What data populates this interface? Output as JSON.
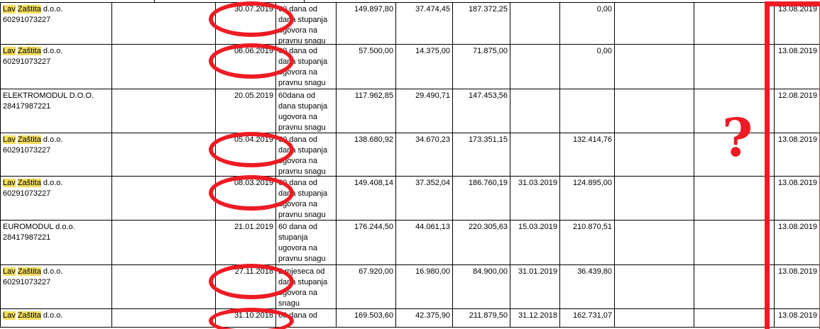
{
  "colors": {
    "annotation_red": "#ed1c24",
    "search_highlight_yellow": "#f2dc5c"
  },
  "annotations": {
    "question_mark": "?",
    "red_box_column": "report_date",
    "circled_field": "contract_date"
  },
  "table": {
    "rows": [
      {
        "company_marked": "Lav Zaštita",
        "company_rest": "d.o.o.",
        "company_id": "60291073227",
        "contract_date": "30.07.2019",
        "circled": true,
        "terms": "60 dana od dana stupanja ugovora na pravnu snagu",
        "amount_net": "149.897,80",
        "amount_vat": "37.474,45",
        "amount_total": "187.372,25",
        "due_date": "",
        "amount_paid": "0,00",
        "report_date": "13.08.2019"
      },
      {
        "company_marked": "Lav Zaštita",
        "company_rest": "d.o.o.",
        "company_id": "60291073227",
        "contract_date": "06.06.2019",
        "circled": true,
        "terms": "60 dana od dana stupanja ugovora na pravnu snagu",
        "amount_net": "57.500,00",
        "amount_vat": "14.375,00",
        "amount_total": "71.875,00",
        "due_date": "",
        "amount_paid": "0,00",
        "report_date": "13.08.2019"
      },
      {
        "company_marked": "",
        "company_rest": "ELEKTROMODUL D.O.O.",
        "company_id": "28417987221",
        "contract_date": "20.05.2019",
        "circled": false,
        "terms": "60dana od dana stupanja ugovora na pravnu snagu",
        "amount_net": "117.962,85",
        "amount_vat": "29.490,71",
        "amount_total": "147.453,56",
        "due_date": "",
        "amount_paid": "",
        "report_date": "12.08.2019"
      },
      {
        "company_marked": "Lav Zaštita",
        "company_rest": "d.o.o.",
        "company_id": "60291073227",
        "contract_date": "05.04.2019",
        "circled": true,
        "terms": "60 dana od dana stupanja ugovora na pravnu snagu",
        "amount_net": "138.680,92",
        "amount_vat": "34.670,23",
        "amount_total": "173.351,15",
        "due_date": "",
        "amount_paid": "132.414,76",
        "report_date": "13.08.2019"
      },
      {
        "company_marked": "Lav Zaštita",
        "company_rest": "d.o.o.",
        "company_id": "60291073227",
        "contract_date": "08.03.2019",
        "circled": true,
        "terms": "60 dana od dana stupanja ugovora na pravnu snagu",
        "amount_net": "149.408,14",
        "amount_vat": "37.352,04",
        "amount_total": "186.760,19",
        "due_date": "31.03.2019",
        "amount_paid": "124.895,00",
        "report_date": "13.08.2019"
      },
      {
        "company_marked": "",
        "company_rest": "EUROMODUL d.o.o.",
        "company_id": "28417987221",
        "contract_date": "21.01.2019",
        "circled": false,
        "terms": "60 dana od stupanja ugovora na pravnu snagu",
        "amount_net": "176.244,50",
        "amount_vat": "44.061,13",
        "amount_total": "220.305,63",
        "due_date": "15.03.2019",
        "amount_paid": "210.870,51",
        "report_date": "13.08.2019"
      },
      {
        "company_marked": "Lav Zaštita",
        "company_rest": "d.o.o.",
        "company_id": "60291073227",
        "contract_date": "27.11.2018",
        "circled": true,
        "terms": "2 mjeseca od dana stupanja ugovora na snagu",
        "amount_net": "67.920,00",
        "amount_vat": "16.980,00",
        "amount_total": "84.900,00",
        "due_date": "31.01.2019",
        "amount_paid": "36.439,80",
        "report_date": "13.08.2019"
      },
      {
        "company_marked": "Lav Zaštita",
        "company_rest": "d.o.o.",
        "company_id": "",
        "contract_date": "31.10.2018",
        "circled": true,
        "terms": "60 dana od",
        "amount_net": "169.503,60",
        "amount_vat": "42.375,90",
        "amount_total": "211.879,50",
        "due_date": "31.12.2018",
        "amount_paid": "162.731,07",
        "report_date": "13.08.2019"
      }
    ]
  }
}
